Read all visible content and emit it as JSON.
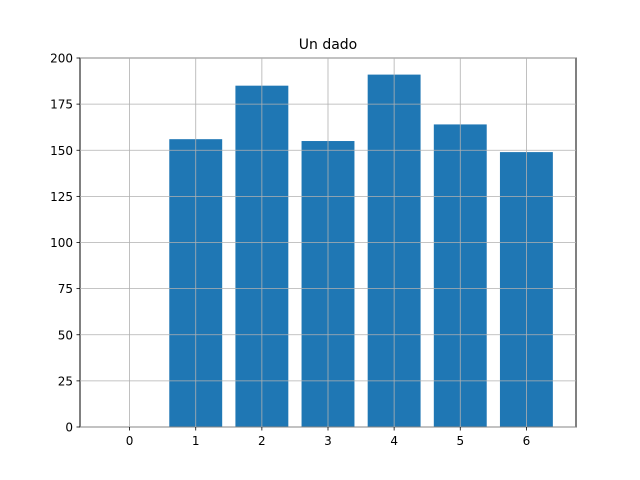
{
  "chart_data": {
    "type": "bar",
    "title": "Un dado",
    "xlabel": "",
    "ylabel": "",
    "categories": [
      "0",
      "1",
      "2",
      "3",
      "4",
      "5",
      "6"
    ],
    "x": [
      0,
      1,
      2,
      3,
      4,
      5,
      6
    ],
    "values": [
      0,
      156,
      185,
      155,
      191,
      164,
      149
    ],
    "xlim": [
      -0.75,
      6.75
    ],
    "ylim": [
      0,
      200
    ],
    "yticks": [
      0,
      25,
      50,
      75,
      100,
      125,
      150,
      175,
      200
    ],
    "grid": true,
    "bar_color": "#1f77b4"
  }
}
